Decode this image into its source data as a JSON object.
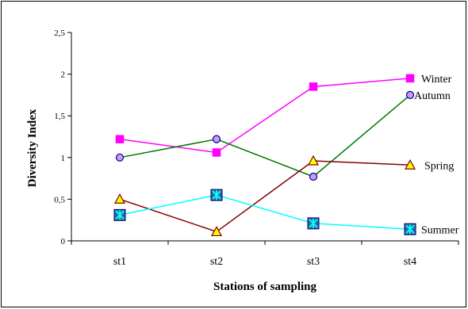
{
  "chart_data": {
    "type": "line",
    "categories": [
      "st1",
      "st2",
      "st3",
      "st4"
    ],
    "series": [
      {
        "name": "Winter",
        "values": [
          1.22,
          1.06,
          1.85,
          1.95
        ],
        "color": "#ff00ff",
        "marker": "square",
        "marker_fill": "#ff00ff"
      },
      {
        "name": "Autumn",
        "values": [
          1.0,
          1.22,
          0.77,
          1.75
        ],
        "color": "#007700",
        "marker": "circle",
        "marker_fill": "#cc99ff"
      },
      {
        "name": "Spring",
        "values": [
          0.5,
          0.11,
          0.96,
          0.91
        ],
        "color": "#800000",
        "marker": "triangle",
        "marker_fill": "#ffff00"
      },
      {
        "name": "Summer",
        "values": [
          0.31,
          0.55,
          0.21,
          0.14
        ],
        "color": "#00ffff",
        "marker": "star-square",
        "marker_fill": "#336699"
      }
    ],
    "xlabel": "Stations of sampling",
    "ylabel": "Diversity Index",
    "ylim": [
      0,
      2.5
    ],
    "yticks": [
      "0",
      "0,5",
      "1",
      "1,5",
      "2",
      "2,5"
    ],
    "grid": false,
    "legend": "labels at line ends (right)"
  }
}
